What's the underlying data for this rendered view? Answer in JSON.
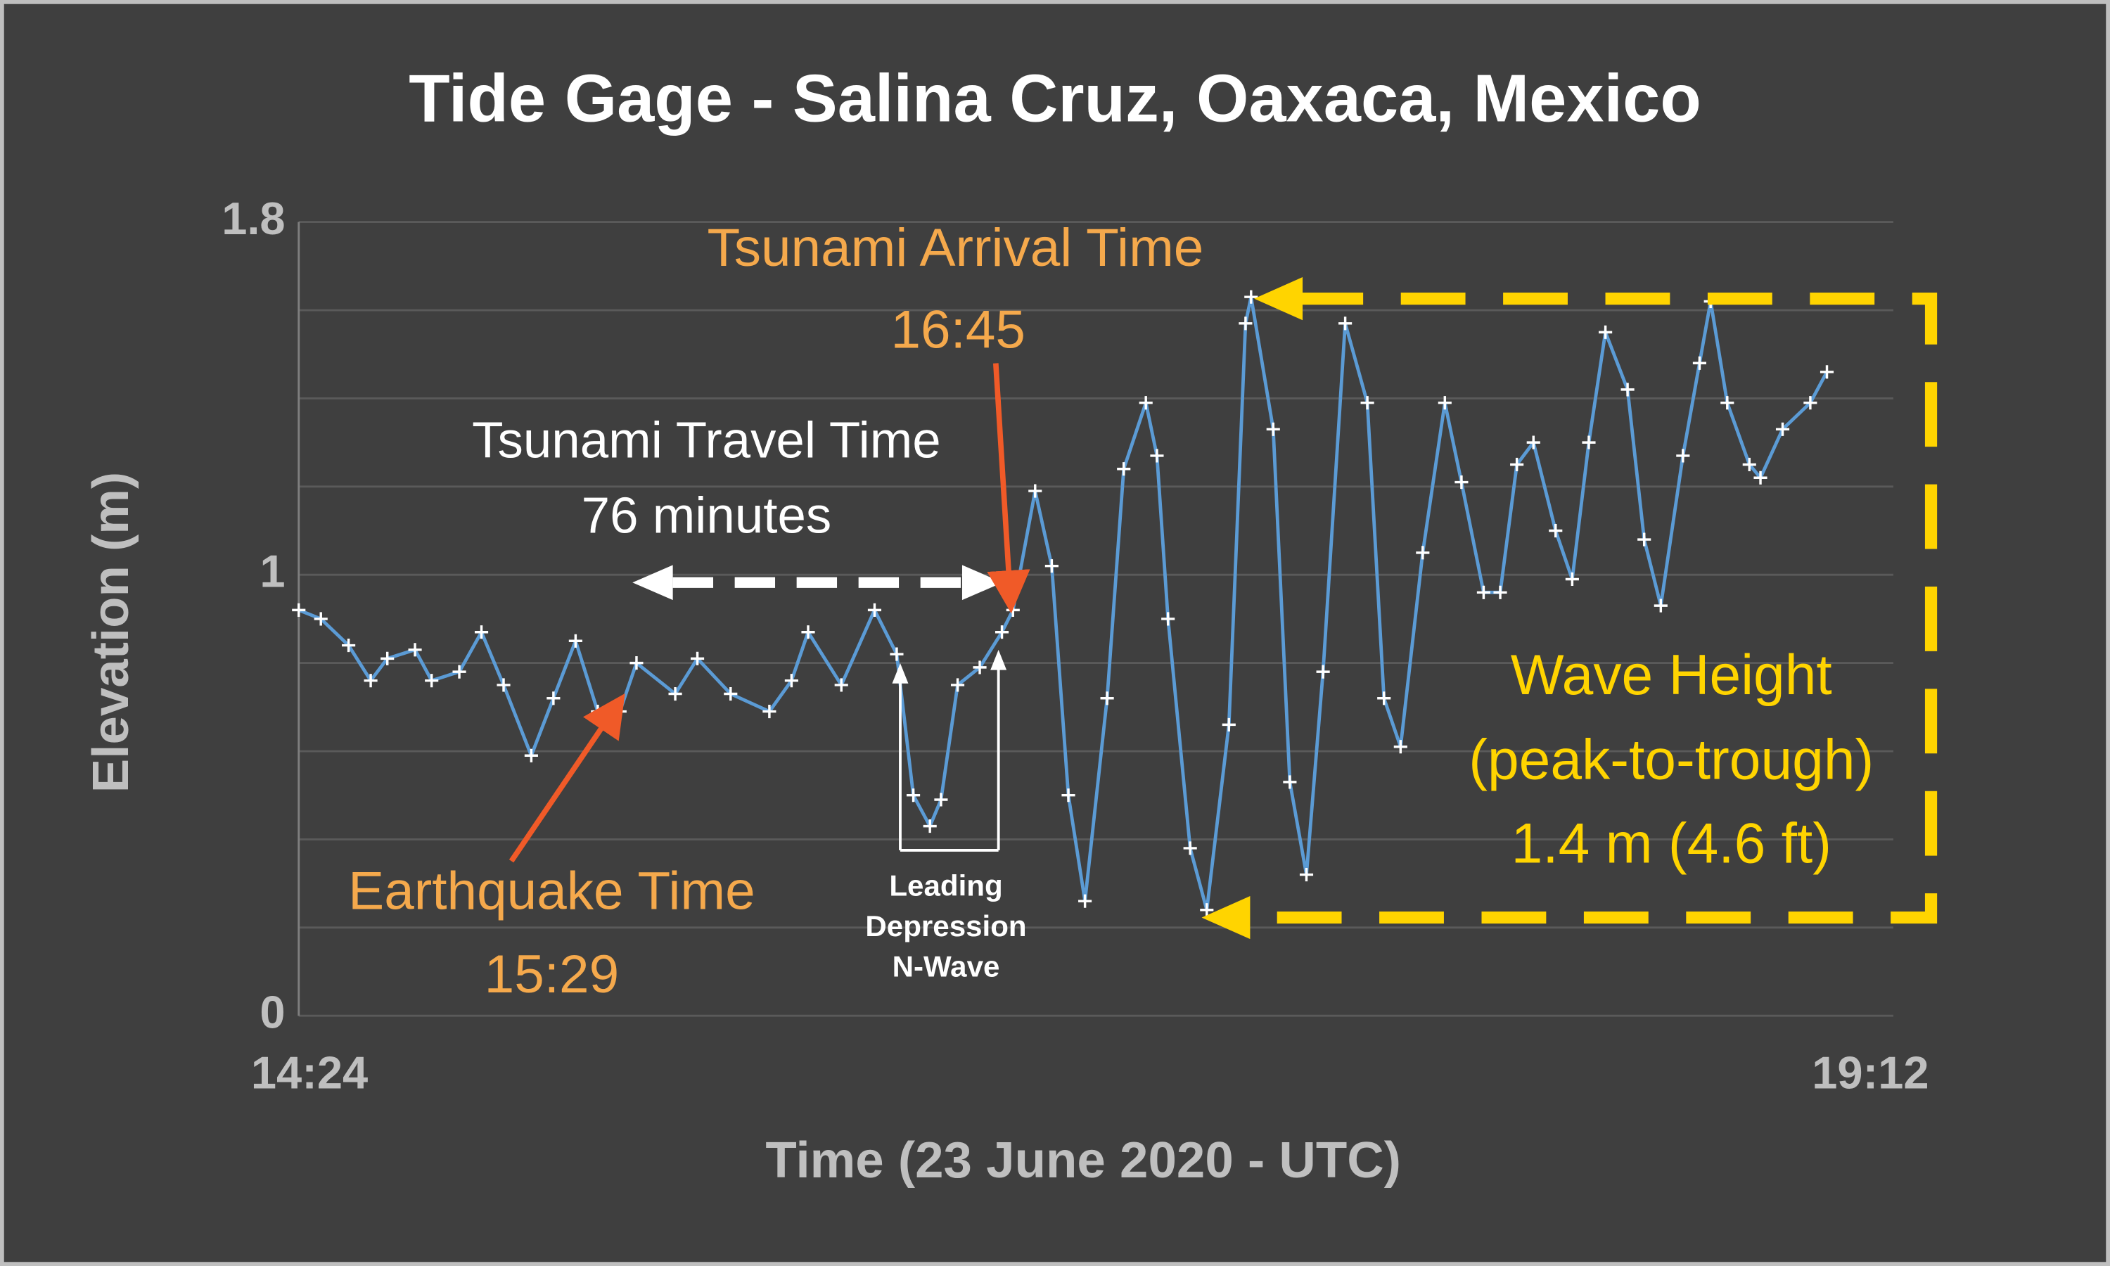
{
  "chart_data": {
    "type": "line",
    "title": "Tide Gage - Salina Cruz, Oaxaca, Mexico",
    "xlabel": "Time (23  June 2020 - UTC)",
    "ylabel": "Elevation (m)",
    "xlim": [
      "14:24",
      "19:12"
    ],
    "xticks": [
      "14:24",
      "19:12"
    ],
    "ylim": [
      0,
      1.8
    ],
    "yticks": [
      0,
      1,
      1.8
    ],
    "minor_yticks": [
      0.2,
      0.4,
      0.6,
      0.8,
      1.2,
      1.4,
      1.6
    ],
    "grid": true,
    "x": [
      "14:24",
      "14:28",
      "14:33",
      "14:37",
      "14:40",
      "14:45",
      "14:48",
      "14:53",
      "14:57",
      "15:01",
      "15:06",
      "15:10",
      "15:14",
      "15:18",
      "15:22",
      "15:25",
      "15:32",
      "15:36",
      "15:42",
      "15:49",
      "15:53",
      "15:56",
      "16:02",
      "16:08",
      "16:12",
      "16:15",
      "16:18",
      "16:20",
      "16:23",
      "16:27",
      "16:31",
      "16:33",
      "16:37",
      "16:40",
      "16:43",
      "16:46",
      "16:50",
      "16:53",
      "16:57",
      "16:59",
      "17:01",
      "17:05",
      "17:08",
      "17:12",
      "17:15",
      "17:16",
      "17:20",
      "17:23",
      "17:26",
      "17:29",
      "17:33",
      "17:37",
      "17:40",
      "17:43",
      "17:47",
      "17:51",
      "17:54",
      "17:58",
      "18:01",
      "18:04",
      "18:07",
      "18:11",
      "18:14",
      "18:17",
      "18:20",
      "18:24",
      "18:27",
      "18:30",
      "18:34",
      "18:37",
      "18:39",
      "18:42",
      "18:46",
      "18:48",
      "18:52",
      "18:57",
      "19:00"
    ],
    "series": [
      {
        "name": "Elevation",
        "color": "#5b9bd5",
        "marker_color": "#ffffff",
        "values": [
          0.92,
          0.9,
          0.84,
          0.76,
          0.81,
          0.83,
          0.76,
          0.78,
          0.87,
          0.75,
          0.59,
          0.72,
          0.85,
          0.69,
          0.69,
          0.8,
          0.73,
          0.81,
          0.73,
          0.69,
          0.76,
          0.87,
          0.75,
          0.92,
          0.82,
          0.5,
          0.43,
          0.49,
          0.75,
          0.79,
          0.87,
          0.92,
          1.19,
          1.02,
          0.5,
          0.26,
          0.72,
          1.24,
          1.39,
          1.27,
          0.9,
          0.38,
          0.24,
          0.66,
          1.57,
          1.63,
          1.33,
          0.53,
          0.32,
          0.78,
          1.57,
          1.39,
          0.72,
          0.61,
          1.05,
          1.39,
          1.21,
          0.96,
          0.96,
          1.25,
          1.3,
          1.1,
          0.99,
          1.3,
          1.55,
          1.42,
          1.08,
          0.93,
          1.27,
          1.48,
          1.62,
          1.39,
          1.25,
          1.22,
          1.33,
          1.39,
          1.46
        ]
      }
    ],
    "annotations": [
      "Tsunami Arrival Time",
      "16:45",
      "Tsunami Travel Time",
      "76 minutes",
      "Earthquake Time",
      "15:29",
      "Leading",
      "Depression",
      "N-Wave",
      "Wave Height",
      "(peak-to-trough)",
      "1.4 m (4.6 ft)"
    ]
  }
}
